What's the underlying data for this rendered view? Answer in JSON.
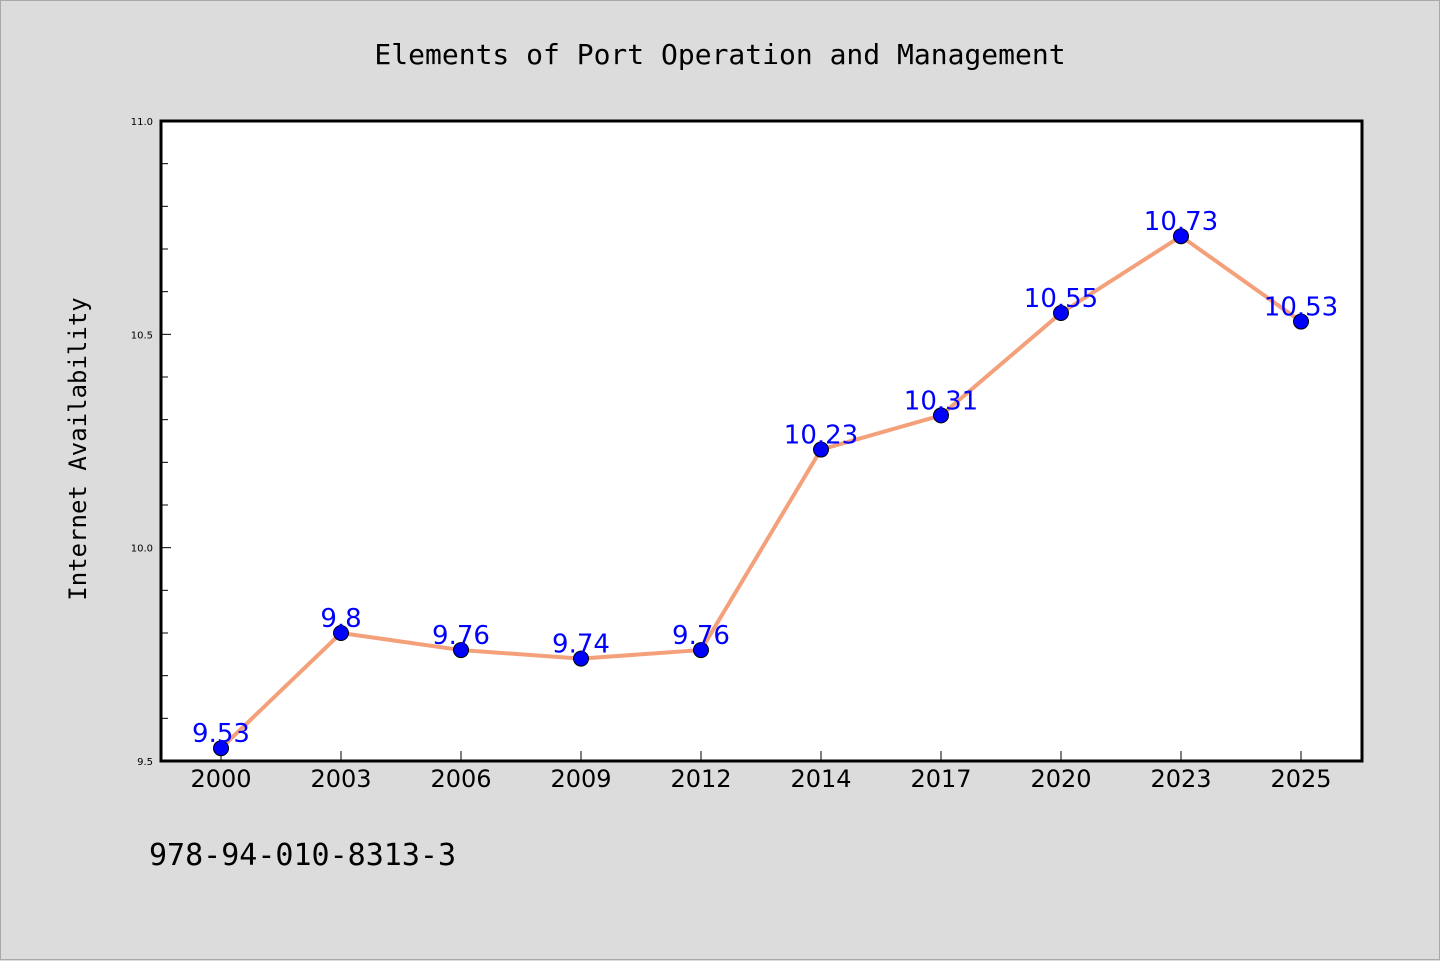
{
  "chart_data": {
    "type": "line",
    "title": "Elements of Port Operation and Management",
    "xlabel": "",
    "ylabel": "Internet Availability",
    "categories": [
      "2000",
      "2003",
      "2006",
      "2009",
      "2012",
      "2014",
      "2017",
      "2020",
      "2023",
      "2025"
    ],
    "series": [
      {
        "values": [
          9.53,
          9.8,
          9.76,
          9.74,
          9.76,
          10.23,
          10.31,
          10.55,
          10.73,
          10.53
        ],
        "line_color": "#f4a07a",
        "marker_color": "#0000ff"
      }
    ],
    "data_labels": [
      "9.53",
      "9.8",
      "9.76",
      "9.74",
      "9.76",
      "10.23",
      "10.31",
      "10.55",
      "10.73",
      "10.53"
    ],
    "ylim": [
      9.5,
      11.0
    ],
    "yticks": [
      "9.5",
      "10.0",
      "10.5",
      "11.0"
    ],
    "grid": false,
    "legend": "none",
    "label_color": "#0000ff"
  },
  "footer": {
    "text": "978-94-010-8313-3"
  }
}
